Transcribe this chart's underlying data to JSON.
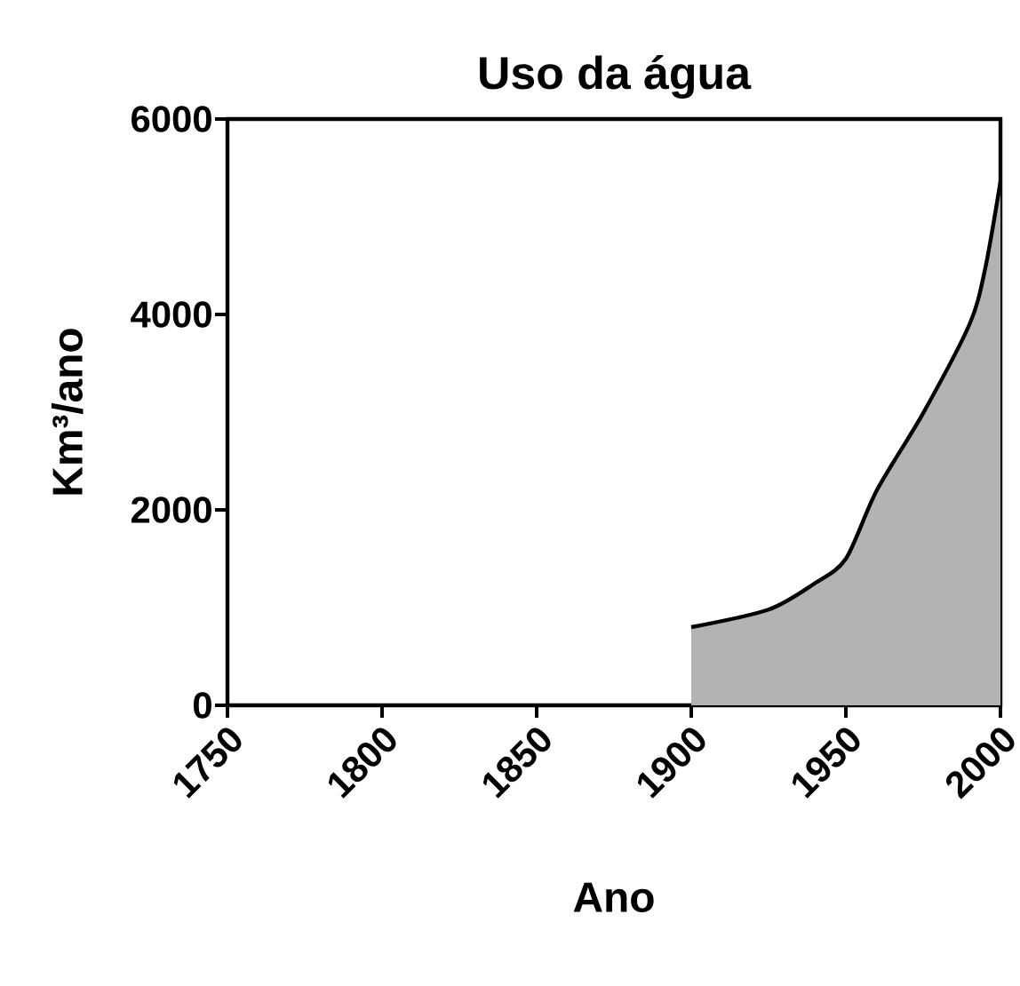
{
  "chart_data": {
    "type": "area",
    "title": "Uso da água",
    "xlabel": "Ano",
    "ylabel": "Km³/ano",
    "series": [
      {
        "color": "#b3b3b3",
        "x": [
          1900,
          1925,
          1940,
          1950,
          1960,
          1975,
          1990,
          1995,
          2000
        ],
        "values": [
          800,
          980,
          1250,
          1500,
          2200,
          2990,
          3900,
          4460,
          5360
        ]
      }
    ],
    "xlim": [
      1750,
      2000
    ],
    "xticks": [
      1750,
      1800,
      1850,
      1900,
      1950,
      2000
    ],
    "ylim": [
      0,
      6000
    ],
    "yticks": [
      0,
      2000,
      4000,
      6000
    ],
    "grid": false
  }
}
